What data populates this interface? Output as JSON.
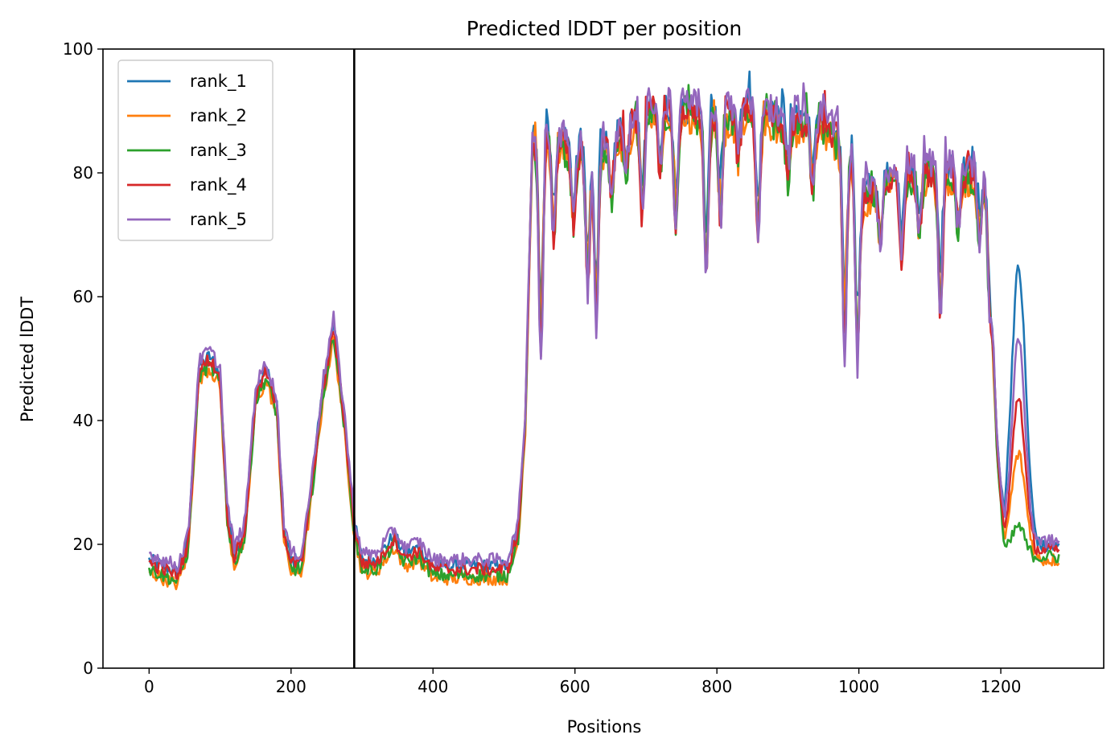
{
  "chart_data": {
    "type": "line",
    "title": "Predicted lDDT per position",
    "xlabel": "Positions",
    "ylabel": "Predicted lDDT",
    "xlim": [
      -65,
      1345
    ],
    "ylim": [
      0,
      100
    ],
    "xticks": [
      0,
      200,
      400,
      600,
      800,
      1000,
      1200
    ],
    "yticks": [
      0,
      20,
      40,
      60,
      80,
      100
    ],
    "grid": false,
    "legend_position": "upper-left",
    "vline_x": 289,
    "series": [
      {
        "name": "rank_1",
        "color": "#1f77b4",
        "offset": 0.5,
        "peaks": [
          [
            1225,
            44,
            10
          ]
        ]
      },
      {
        "name": "rank_2",
        "color": "#ff7f0e",
        "offset": -1.5,
        "peaks": [
          [
            1225,
            16,
            10
          ]
        ]
      },
      {
        "name": "rank_3",
        "color": "#2ca02c",
        "offset": -1.0,
        "peaks": [
          [
            1225,
            4,
            8
          ]
        ]
      },
      {
        "name": "rank_4",
        "color": "#d62728",
        "offset": 0.0,
        "peaks": [
          [
            1225,
            24,
            9
          ]
        ]
      },
      {
        "name": "rank_5",
        "color": "#9467bd",
        "offset": 1.5,
        "peaks": [
          [
            1225,
            32,
            9
          ]
        ]
      }
    ],
    "profile": [
      [
        0,
        17
      ],
      [
        20,
        16
      ],
      [
        40,
        15
      ],
      [
        55,
        20
      ],
      [
        70,
        48
      ],
      [
        85,
        50
      ],
      [
        100,
        47
      ],
      [
        110,
        25
      ],
      [
        120,
        18
      ],
      [
        135,
        22
      ],
      [
        150,
        44
      ],
      [
        165,
        48
      ],
      [
        180,
        42
      ],
      [
        190,
        22
      ],
      [
        200,
        17
      ],
      [
        215,
        17
      ],
      [
        230,
        30
      ],
      [
        245,
        45
      ],
      [
        260,
        55
      ],
      [
        275,
        40
      ],
      [
        289,
        23
      ],
      [
        300,
        17
      ],
      [
        320,
        17
      ],
      [
        345,
        21
      ],
      [
        360,
        18
      ],
      [
        380,
        19
      ],
      [
        400,
        16
      ],
      [
        450,
        16
      ],
      [
        480,
        16
      ],
      [
        505,
        16
      ],
      [
        520,
        22
      ],
      [
        530,
        40
      ],
      [
        540,
        85
      ],
      [
        560,
        87
      ],
      [
        580,
        85
      ],
      [
        600,
        83
      ],
      [
        650,
        85
      ],
      [
        700,
        90
      ],
      [
        750,
        90
      ],
      [
        800,
        89
      ],
      [
        850,
        90
      ],
      [
        900,
        88
      ],
      [
        950,
        88
      ],
      [
        990,
        83
      ],
      [
        1000,
        76
      ],
      [
        1050,
        80
      ],
      [
        1100,
        80
      ],
      [
        1150,
        80
      ],
      [
        1180,
        80
      ],
      [
        1195,
        35
      ],
      [
        1205,
        20
      ],
      [
        1225,
        20
      ],
      [
        1250,
        19
      ],
      [
        1282,
        19
      ]
    ],
    "dips": [
      [
        552,
        40
      ],
      [
        570,
        18
      ],
      [
        598,
        12
      ],
      [
        618,
        24
      ],
      [
        630,
        30
      ],
      [
        652,
        10
      ],
      [
        672,
        8
      ],
      [
        695,
        18
      ],
      [
        720,
        10
      ],
      [
        742,
        20
      ],
      [
        785,
        28
      ],
      [
        805,
        18
      ],
      [
        830,
        8
      ],
      [
        858,
        22
      ],
      [
        900,
        10
      ],
      [
        935,
        12
      ],
      [
        980,
        35
      ],
      [
        998,
        30
      ],
      [
        1030,
        12
      ],
      [
        1060,
        15
      ],
      [
        1085,
        12
      ],
      [
        1115,
        25
      ],
      [
        1140,
        10
      ],
      [
        1170,
        12
      ],
      [
        1183,
        12
      ]
    ]
  }
}
